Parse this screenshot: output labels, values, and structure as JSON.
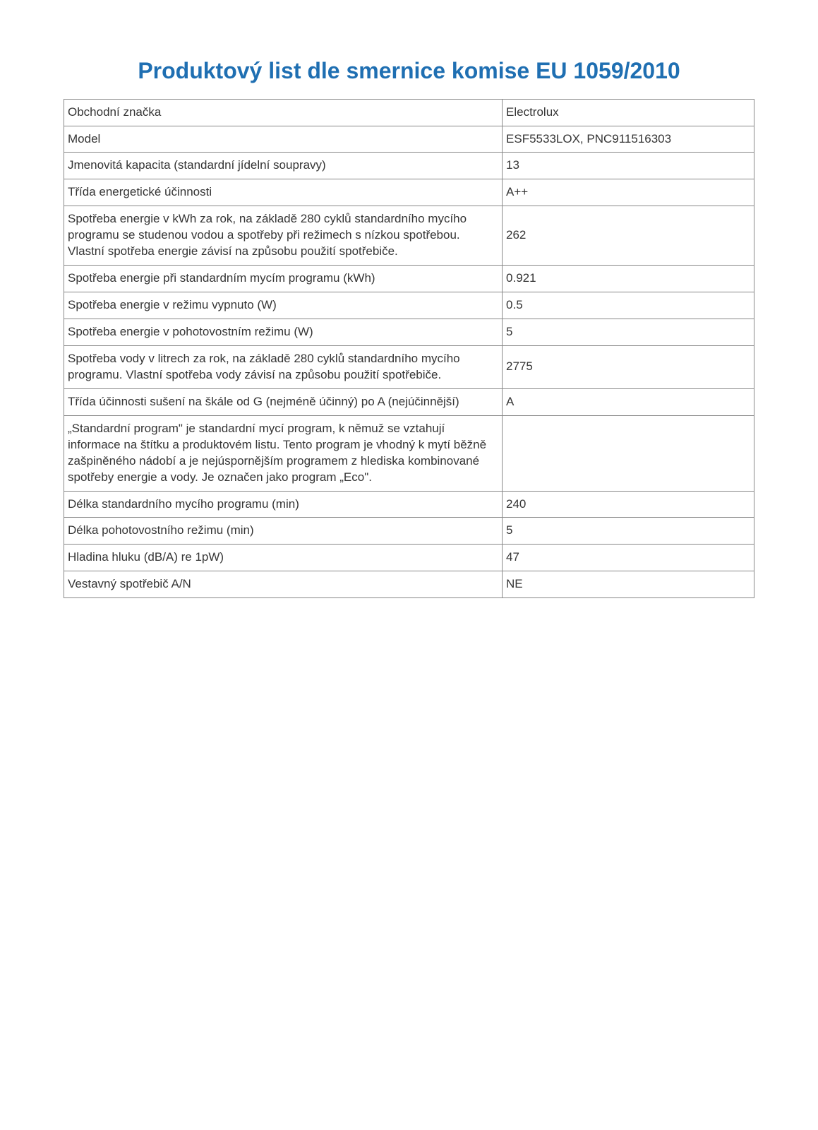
{
  "title": "Produktový list dle smernice komise EU 1059/2010",
  "title_color": "#1f6fb2",
  "title_fontsize": 32,
  "text_color": "#353535",
  "border_color": "#888888",
  "background_color": "#ffffff",
  "body_fontsize": 17,
  "label_col_width_pct": 63.5,
  "value_col_width_pct": 36.5,
  "rows": [
    {
      "label": "Obchodní značka",
      "value": "Electrolux"
    },
    {
      "label": "Model",
      "value": "ESF5533LOX, PNC911516303"
    },
    {
      "label": "Jmenovitá kapacita (standardní jídelní soupravy)",
      "value": "13"
    },
    {
      "label": "Třída energetické účinnosti",
      "value": "A++"
    },
    {
      "label": "Spotřeba energie v kWh za rok, na základě 280 cyklů standardního mycího programu se studenou vodou a spotřeby při režimech s nízkou spotřebou. Vlastní spotřeba energie závisí na způsobu použití spotřebiče.",
      "value": "262"
    },
    {
      "label": "Spotřeba energie při standardním mycím programu (kWh)",
      "value": "0.921"
    },
    {
      "label": "Spotřeba energie v režimu vypnuto (W)",
      "value": "0.5"
    },
    {
      "label": "Spotřeba energie v pohotovostním režimu (W)",
      "value": "5"
    },
    {
      "label": "Spotřeba vody v litrech za rok, na základě 280 cyklů standardního mycího programu. Vlastní spotřeba vody závisí na způsobu použití spotřebiče.",
      "value": "2775"
    },
    {
      "label": "Třída účinnosti sušení na škále od G (nejméně účinný) po A (nejúčinnější)",
      "value": "A"
    },
    {
      "label": "„Standardní program\" je standardní mycí program, k němuž se vztahují informace na štítku a produktovém listu. Tento program je vhodný k mytí běžně zašpiněného nádobí a je nejúspornějším programem z hlediska kombinované spotřeby energie a vody.  Je označen jako program „Eco\".",
      "value": ""
    },
    {
      "label": "Délka standardního mycího programu (min)",
      "value": "240"
    },
    {
      "label": "Délka pohotovostního režimu (min)",
      "value": "5"
    },
    {
      "label": "Hladina hluku (dB/A) re 1pW)",
      "value": "47"
    },
    {
      "label": "Vestavný spotřebič A/N",
      "value": "NE"
    }
  ]
}
